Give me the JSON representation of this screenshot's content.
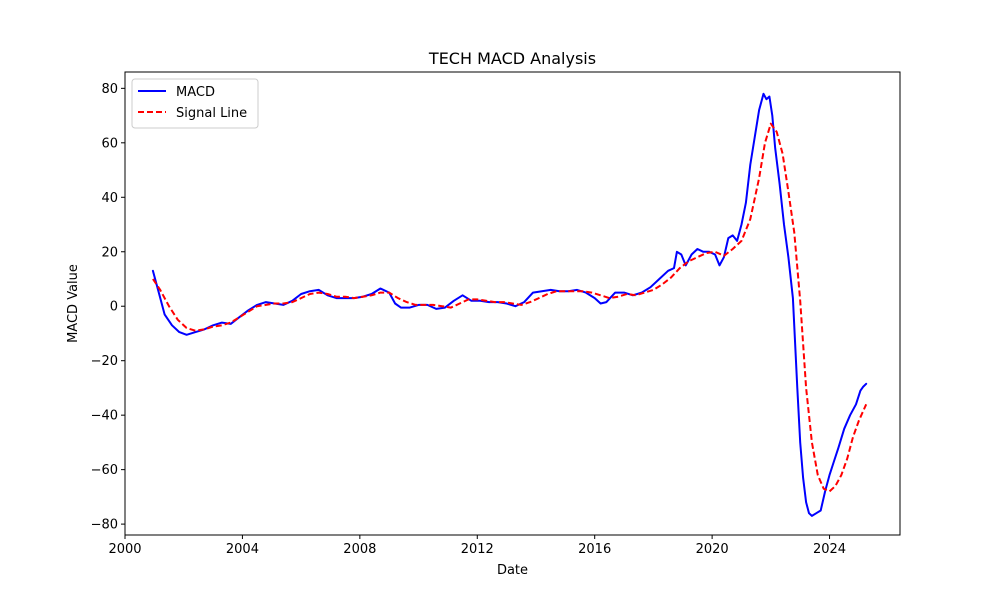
{
  "chart_data": {
    "type": "line",
    "title": "TECH MACD Analysis",
    "xlabel": "Date",
    "ylabel": "MACD Value",
    "xlim": [
      2000.0,
      2026.4
    ],
    "ylim": [
      -84,
      86
    ],
    "xticks": [
      2000,
      2004,
      2008,
      2012,
      2016,
      2020,
      2024
    ],
    "yticks": [
      -80,
      -60,
      -40,
      -20,
      0,
      20,
      40,
      60,
      80
    ],
    "grid": false,
    "legend_position": "top-left",
    "series": [
      {
        "name": "MACD",
        "color": "#0000ff",
        "style": "solid",
        "x": [
          2000.95,
          2001.15,
          2001.35,
          2001.6,
          2001.85,
          2002.1,
          2002.4,
          2002.7,
          2003.0,
          2003.3,
          2003.6,
          2003.9,
          2004.2,
          2004.5,
          2004.8,
          2005.1,
          2005.4,
          2005.7,
          2006.0,
          2006.3,
          2006.6,
          2006.9,
          2007.2,
          2007.5,
          2007.8,
          2008.1,
          2008.4,
          2008.7,
          2009.0,
          2009.2,
          2009.4,
          2009.7,
          2010.0,
          2010.3,
          2010.6,
          2010.9,
          2011.2,
          2011.5,
          2011.8,
          2012.1,
          2012.4,
          2012.7,
          2013.0,
          2013.3,
          2013.6,
          2013.9,
          2014.2,
          2014.5,
          2014.8,
          2015.1,
          2015.4,
          2015.7,
          2016.0,
          2016.2,
          2016.4,
          2016.7,
          2017.0,
          2017.3,
          2017.6,
          2017.9,
          2018.2,
          2018.5,
          2018.7,
          2018.8,
          2018.95,
          2019.1,
          2019.3,
          2019.5,
          2019.7,
          2019.9,
          2020.1,
          2020.25,
          2020.4,
          2020.55,
          2020.7,
          2020.85,
          2021.0,
          2021.15,
          2021.3,
          2021.45,
          2021.6,
          2021.75,
          2021.85,
          2021.95,
          2022.05,
          2022.15,
          2022.3,
          2022.45,
          2022.6,
          2022.75,
          2022.9,
          2023.0,
          2023.1,
          2023.2,
          2023.3,
          2023.4,
          2023.55,
          2023.7,
          2023.85,
          2024.0,
          2024.15,
          2024.3,
          2024.5,
          2024.7,
          2024.9,
          2025.05,
          2025.15,
          2025.25
        ],
        "values": [
          13,
          5,
          -3,
          -7,
          -9.5,
          -10.5,
          -9.5,
          -8.5,
          -7,
          -6,
          -6.5,
          -4,
          -1.5,
          0.5,
          1.5,
          1,
          0.5,
          2,
          4.5,
          5.5,
          6,
          4,
          3,
          3,
          3,
          3.5,
          4.5,
          6.5,
          5,
          1,
          -0.5,
          -0.5,
          0.5,
          0.5,
          -1,
          -0.5,
          2,
          4,
          2,
          2,
          1.5,
          1.5,
          1,
          0,
          1.5,
          5,
          5.5,
          6,
          5.5,
          5.5,
          6,
          5,
          3,
          1,
          1.5,
          5,
          5,
          4,
          5,
          7,
          10,
          13,
          14,
          20,
          19,
          15,
          19,
          21,
          20,
          20,
          19,
          15,
          18,
          25,
          26,
          24,
          30,
          38,
          52,
          62,
          72,
          78,
          76,
          77,
          70,
          58,
          45,
          30,
          18,
          3,
          -30,
          -50,
          -63,
          -72,
          -76,
          -77,
          -76,
          -75,
          -68,
          -62,
          -57,
          -52,
          -45,
          -40,
          -36,
          -31,
          -29.5,
          -28.5
        ]
      },
      {
        "name": "Signal Line",
        "color": "#ff0000",
        "style": "dashed",
        "x": [
          2000.95,
          2001.2,
          2001.5,
          2001.8,
          2002.1,
          2002.4,
          2002.7,
          2003.0,
          2003.3,
          2003.6,
          2003.9,
          2004.2,
          2004.5,
          2004.8,
          2005.1,
          2005.4,
          2005.7,
          2006.0,
          2006.3,
          2006.6,
          2006.9,
          2007.2,
          2007.5,
          2007.8,
          2008.1,
          2008.4,
          2008.7,
          2009.0,
          2009.3,
          2009.6,
          2009.9,
          2010.2,
          2010.5,
          2010.8,
          2011.1,
          2011.4,
          2011.7,
          2012.0,
          2012.3,
          2012.6,
          2012.9,
          2013.2,
          2013.5,
          2013.8,
          2014.1,
          2014.4,
          2014.7,
          2015.0,
          2015.3,
          2015.6,
          2015.9,
          2016.2,
          2016.5,
          2016.8,
          2017.1,
          2017.4,
          2017.7,
          2018.0,
          2018.3,
          2018.6,
          2018.9,
          2019.2,
          2019.5,
          2019.8,
          2020.1,
          2020.4,
          2020.7,
          2021.0,
          2021.3,
          2021.6,
          2021.8,
          2022.0,
          2022.2,
          2022.4,
          2022.6,
          2022.8,
          2023.0,
          2023.2,
          2023.4,
          2023.6,
          2023.8,
          2024.0,
          2024.2,
          2024.4,
          2024.6,
          2024.8,
          2025.0,
          2025.25
        ],
        "values": [
          10,
          6,
          0,
          -5,
          -8,
          -9,
          -8.5,
          -7.5,
          -7,
          -6,
          -4,
          -2,
          0,
          0.5,
          1,
          1,
          1.5,
          3,
          4.5,
          5,
          4.5,
          3.5,
          3.5,
          3,
          3.5,
          4,
          5,
          5,
          3,
          1.5,
          0.5,
          0.5,
          0.5,
          0,
          -0.5,
          1,
          2.5,
          2.5,
          2,
          1.5,
          1.5,
          1,
          0.5,
          1.5,
          3,
          4.5,
          5.5,
          5.5,
          5.5,
          5.5,
          5,
          4,
          3,
          3.5,
          4.5,
          4,
          5,
          6,
          8,
          10.5,
          14,
          16.5,
          18,
          19.5,
          20,
          18.5,
          21,
          24,
          32,
          47,
          60,
          67,
          64,
          56,
          42,
          27,
          2,
          -30,
          -50,
          -62,
          -67,
          -68,
          -66,
          -62,
          -56,
          -48,
          -42,
          -36
        ]
      }
    ]
  }
}
